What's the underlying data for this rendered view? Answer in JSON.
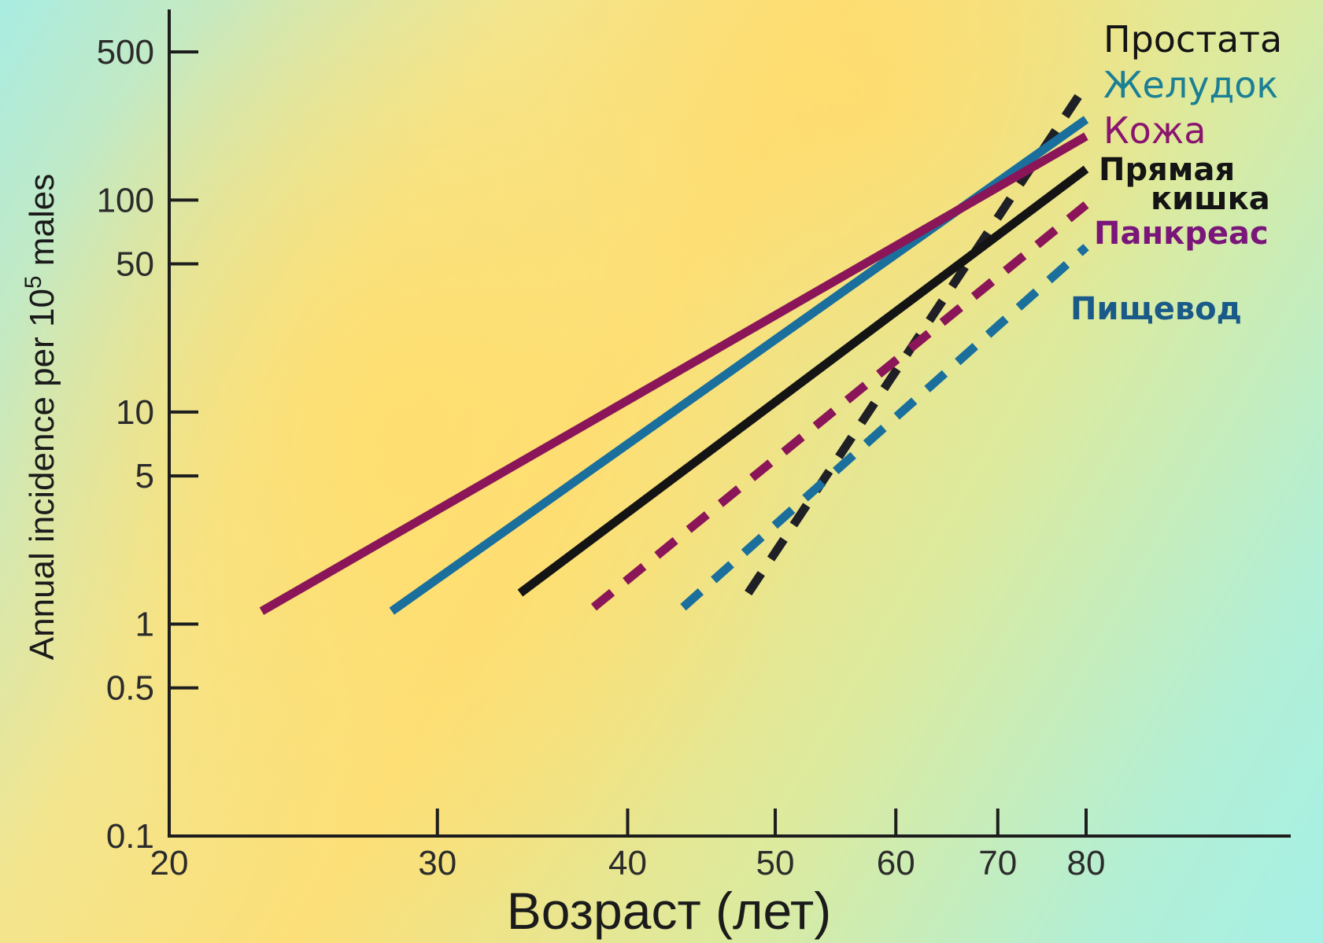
{
  "chart_data": {
    "type": "line",
    "xlabel": "Возраст (лет)",
    "ylabel": "Annual incidence per 10",
    "ylabel_sup": "5",
    "ylabel_tail": " males",
    "x_scale": "log",
    "y_scale": "log",
    "xlim": [
      20,
      100
    ],
    "ylim": [
      0.1,
      600
    ],
    "x_ticks": [
      {
        "value": 20,
        "label": "20"
      },
      {
        "value": 30,
        "label": "30"
      },
      {
        "value": 40,
        "label": "40"
      },
      {
        "value": 50,
        "label": "50"
      },
      {
        "value": 60,
        "label": "60"
      },
      {
        "value": 70,
        "label": "70"
      },
      {
        "value": 80,
        "label": "80"
      }
    ],
    "y_ticks": [
      {
        "value": 500,
        "label": "500"
      },
      {
        "value": 100,
        "label": "100"
      },
      {
        "value": 50,
        "label": "50"
      },
      {
        "value": 10,
        "label": "10"
      },
      {
        "value": 5,
        "label": "5"
      },
      {
        "value": 1,
        "label": "1"
      },
      {
        "value": 0.5,
        "label": "0.5"
      },
      {
        "value": 0.1,
        "label": "0.1"
      }
    ],
    "series": [
      {
        "name": "Простата",
        "color": "#1f1f26",
        "style": "dashed",
        "x": [
          48,
          80
        ],
        "y": [
          1.4,
          350
        ]
      },
      {
        "name": "Желудок",
        "color": "#1a6f9c",
        "style": "solid",
        "x": [
          28,
          80
        ],
        "y": [
          1.15,
          240
        ]
      },
      {
        "name": "Кожа",
        "color": "#8a1558",
        "style": "solid",
        "x": [
          23,
          80
        ],
        "y": [
          1.15,
          200
        ]
      },
      {
        "name": "Прямая кишка",
        "color": "#141414",
        "style": "solid",
        "x": [
          34,
          80
        ],
        "y": [
          1.4,
          140
        ]
      },
      {
        "name": "Панкреас",
        "color": "#8a1558",
        "style": "dashed",
        "x": [
          38,
          80
        ],
        "y": [
          1.2,
          95
        ]
      },
      {
        "name": "Пищевод",
        "color": "#1a6f9c",
        "style": "dashed",
        "x": [
          43.5,
          80
        ],
        "y": [
          1.2,
          60
        ]
      }
    ],
    "legend": [
      {
        "line1": "Простата",
        "color": "#141414"
      },
      {
        "line1": "Желудок",
        "color": "#1b7f95"
      },
      {
        "line1": "Кожа",
        "color": "#8a1570"
      },
      {
        "line1": "Прямая",
        "line2": "кишка",
        "color": "#141414"
      },
      {
        "line1": "Панкреас",
        "color": "#7a157a"
      },
      {
        "line1": "Пищевод",
        "color": "#1a5a88"
      }
    ]
  }
}
